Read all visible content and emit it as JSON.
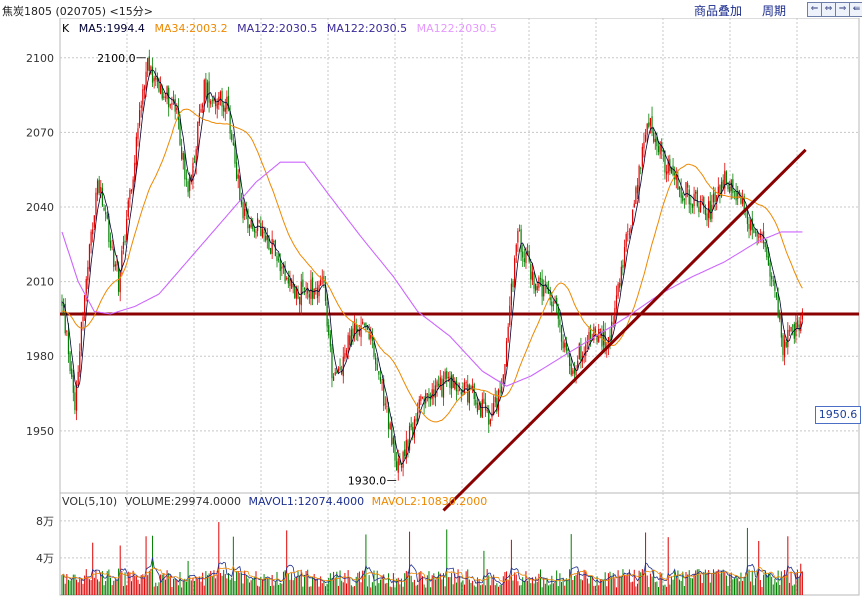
{
  "header": {
    "symbol": "焦炭1805 (020705) <15分>",
    "menu_overlay": "商品叠加",
    "menu_period": "周期",
    "nav": [
      "⇐",
      "⇔",
      "⇒",
      "⇚"
    ]
  },
  "colors": {
    "up": "#e00000",
    "down": "#008000",
    "ma5": "#000033",
    "ma34": "#ee8800",
    "ma122": "#cc66ff",
    "trend": "#8b0000",
    "grid": "#c8c8c8"
  },
  "price_legend": {
    "k": "K",
    "ma5": "MA5:1994.4",
    "ma34": "MA34:2003.2",
    "ma122a": "MA122:2030.5",
    "ma122b": "MA122:2030.5",
    "ma122c": "MA122:2030.5"
  },
  "volume_legend": {
    "vol": "VOL(5,10)",
    "volume": "VOLUME:29974.0000",
    "mavol1": "MAVOL1:12074.4000",
    "mavol2": "MAVOL2:10830.2000"
  },
  "current_price": "1950.6",
  "chart_data": {
    "type": "candlestick",
    "price_axis": {
      "ticks": [
        2100,
        2070,
        2040,
        2010,
        1980,
        1950
      ],
      "tick_labels": [
        "2100",
        "2070",
        "2040",
        "2010",
        "1980",
        "1950"
      ],
      "range": [
        1925,
        2116
      ]
    },
    "volume_axis": {
      "tick_labels": [
        "8万",
        "4万"
      ],
      "ticks": [
        80000,
        40000
      ],
      "range": [
        0,
        110000
      ]
    },
    "annotations": {
      "high_label": "2100.0",
      "high_value": 2100.0,
      "low_label": "1930.0",
      "low_value": 1930.0
    },
    "horizontal_line_value": 1997,
    "keypoints": [
      [
        0,
        2002
      ],
      [
        8,
        1962
      ],
      [
        12,
        1992
      ],
      [
        22,
        2050
      ],
      [
        35,
        2010
      ],
      [
        45,
        2060
      ],
      [
        52,
        2098
      ],
      [
        70,
        2080
      ],
      [
        78,
        2045
      ],
      [
        88,
        2088
      ],
      [
        102,
        2080
      ],
      [
        112,
        2038
      ],
      [
        130,
        2025
      ],
      [
        145,
        2005
      ],
      [
        162,
        2008
      ],
      [
        168,
        1968
      ],
      [
        180,
        1990
      ],
      [
        188,
        1993
      ],
      [
        198,
        1966
      ],
      [
        208,
        1935
      ],
      [
        222,
        1960
      ],
      [
        238,
        1970
      ],
      [
        254,
        1965
      ],
      [
        265,
        1953
      ],
      [
        272,
        1968
      ],
      [
        282,
        2030
      ],
      [
        292,
        2010
      ],
      [
        305,
        2000
      ],
      [
        315,
        1975
      ],
      [
        328,
        1990
      ],
      [
        338,
        1985
      ],
      [
        345,
        2012
      ],
      [
        355,
        2045
      ],
      [
        362,
        2075
      ],
      [
        378,
        2050
      ],
      [
        400,
        2038
      ],
      [
        410,
        2052
      ],
      [
        422,
        2038
      ],
      [
        432,
        2028
      ],
      [
        440,
        2012
      ],
      [
        446,
        1985
      ],
      [
        452,
        1988
      ],
      [
        458,
        1995
      ]
    ],
    "ma34_start": 1998,
    "ma122_start": 2030,
    "ma122_keypoints": [
      [
        0,
        2030
      ],
      [
        10,
        2010
      ],
      [
        20,
        1998
      ],
      [
        30,
        1997
      ],
      [
        45,
        2000
      ],
      [
        60,
        2005
      ],
      [
        80,
        2020
      ],
      [
        100,
        2035
      ],
      [
        120,
        2050
      ],
      [
        135,
        2058
      ],
      [
        150,
        2058
      ],
      [
        165,
        2045
      ],
      [
        185,
        2028
      ],
      [
        205,
        2012
      ],
      [
        220,
        1998
      ],
      [
        240,
        1988
      ],
      [
        260,
        1974
      ],
      [
        275,
        1968
      ],
      [
        290,
        1972
      ],
      [
        310,
        1980
      ],
      [
        330,
        1988
      ],
      [
        350,
        1996
      ],
      [
        370,
        2005
      ],
      [
        390,
        2012
      ],
      [
        410,
        2018
      ],
      [
        430,
        2026
      ],
      [
        445,
        2030
      ],
      [
        458,
        2030
      ]
    ],
    "trend_line": [
      [
        236,
        1918
      ],
      [
        460,
        2063
      ]
    ]
  }
}
